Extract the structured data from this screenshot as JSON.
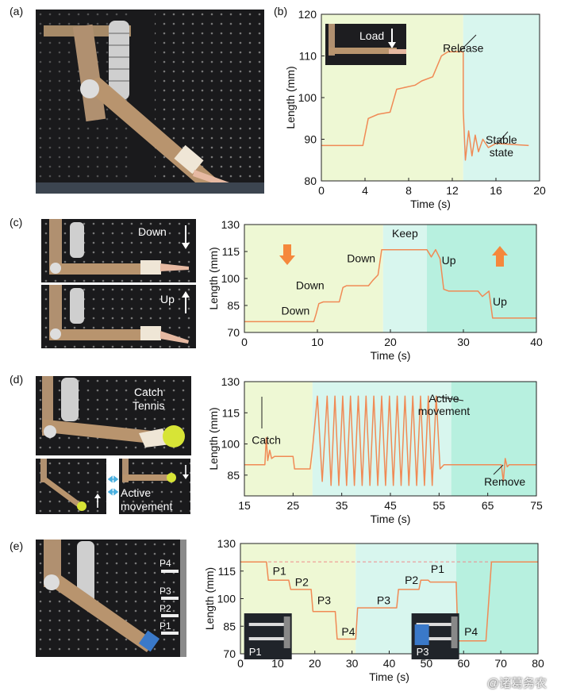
{
  "panels": {
    "a": {
      "label": "(a)"
    },
    "b": {
      "label": "(b)",
      "inset_text": "Load"
    },
    "c": {
      "label": "(c)",
      "photo_top_text": "Down",
      "photo_bottom_text": "Up"
    },
    "d": {
      "label": "(d)",
      "photo_text": "Catch\nTennis",
      "photo_small_text": "Active\nmovement"
    },
    "e": {
      "label": "(e)",
      "markers": [
        "P4",
        "P3",
        "P2",
        "P1"
      ]
    }
  },
  "watermark": "@诸葛务农",
  "colors": {
    "line": "#f08a55",
    "green_bg": "#eef8d4",
    "cyan_bg": "#d8f6ee",
    "teal_bg": "#b7f0df",
    "arrow": "#f5883c",
    "dashed": "#f08a8a"
  },
  "chart_data": [
    {
      "panel": "b",
      "type": "line",
      "xlabel": "Time (s)",
      "ylabel": "Length (mm)",
      "xlim": [
        0,
        20
      ],
      "ylim": [
        80,
        120
      ],
      "xticks": [
        0,
        4,
        8,
        12,
        16,
        20
      ],
      "yticks": [
        80,
        90,
        100,
        110,
        120
      ],
      "regions": [
        {
          "x": [
            0,
            13
          ],
          "color": "green"
        },
        {
          "x": [
            13,
            20
          ],
          "color": "cyan"
        }
      ],
      "annotations": [
        {
          "text": "Release",
          "x": 13,
          "y": 111
        },
        {
          "text": "Stable\nstate",
          "x": 16.5,
          "y": 89
        }
      ],
      "series": [
        {
          "x": [
            0,
            3.8,
            4.3,
            5.2,
            6.3,
            6.9,
            8.6,
            9.2,
            10.2,
            11.0,
            11.6,
            13.0,
            13.0,
            13.2,
            13.5,
            13.8,
            14.1,
            14.4,
            14.8,
            15.3,
            16.0,
            19
          ],
          "y": [
            88.5,
            88.5,
            95,
            96,
            96.5,
            102,
            103,
            104,
            105,
            110,
            111,
            111,
            97,
            85,
            92,
            86,
            91,
            87,
            90,
            88,
            89,
            88.5
          ]
        }
      ]
    },
    {
      "panel": "c",
      "type": "line",
      "xlabel": "Time (s)",
      "ylabel": "Length (mm)",
      "xlim": [
        0,
        40
      ],
      "ylim": [
        70,
        130
      ],
      "xticks": [
        0,
        10,
        20,
        30,
        40
      ],
      "yticks": [
        70,
        85,
        100,
        115,
        130
      ],
      "regions": [
        {
          "x": [
            0,
            19
          ],
          "color": "green"
        },
        {
          "x": [
            19,
            25
          ],
          "color": "cyan"
        },
        {
          "x": [
            25,
            40
          ],
          "color": "teal"
        }
      ],
      "annotations": [
        {
          "text": "Down",
          "x": 7,
          "y": 80
        },
        {
          "text": "Down",
          "x": 9,
          "y": 94
        },
        {
          "text": "Down",
          "x": 16,
          "y": 109
        },
        {
          "text": "Keep",
          "x": 22,
          "y": 123
        },
        {
          "text": "Up",
          "x": 28,
          "y": 108
        },
        {
          "text": "Up",
          "x": 35,
          "y": 85
        }
      ],
      "series": [
        {
          "x": [
            0,
            9.5,
            9.8,
            10.2,
            10.8,
            13.0,
            13.5,
            14.0,
            17.0,
            17.6,
            18.3,
            18.8,
            25.0,
            25.6,
            26.2,
            26.8,
            27.3,
            28.0,
            32.0,
            32.6,
            33.5,
            34.0,
            40
          ],
          "y": [
            76,
            76,
            80,
            86,
            87,
            87,
            95,
            96,
            96,
            99,
            102,
            116,
            116,
            112,
            116,
            111,
            94,
            93,
            93,
            90,
            93,
            78,
            78
          ]
        }
      ]
    },
    {
      "panel": "d",
      "type": "line",
      "xlabel": "Time (s)",
      "ylabel": "Length (mm)",
      "xlim": [
        15,
        75
      ],
      "ylim": [
        75,
        130
      ],
      "xticks": [
        15,
        25,
        35,
        45,
        55,
        65,
        75
      ],
      "yticks": [
        85,
        100,
        115,
        130
      ],
      "regions": [
        {
          "x": [
            15,
            29
          ],
          "color": "green"
        },
        {
          "x": [
            29,
            57.5
          ],
          "color": "cyan"
        },
        {
          "x": [
            57.5,
            75
          ],
          "color": "teal"
        }
      ],
      "annotations": [
        {
          "text": "Catch",
          "x": 19.5,
          "y": 100
        },
        {
          "text": "Active\nmovement",
          "x": 56,
          "y": 120
        },
        {
          "text": "Remove",
          "x": 68.5,
          "y": 80
        }
      ],
      "series": [
        {
          "x": [
            15,
            19.2,
            19.5,
            19.8,
            20.2,
            20.6,
            21.2,
            25.0,
            25.3,
            28.5,
            29.0,
            30.0,
            31.0,
            32.0,
            32.8,
            33.6,
            34.4,
            35.2,
            36.0,
            36.8,
            37.6,
            38.4,
            39.2,
            40.0,
            40.8,
            41.6,
            42.4,
            43.2,
            44.0,
            44.8,
            45.6,
            46.4,
            47.2,
            48.0,
            48.8,
            49.6,
            50.4,
            51.2,
            52.0,
            52.8,
            53.6,
            54.4,
            55.2,
            56.0,
            56.8,
            57.6,
            67.8,
            68.2,
            68.6,
            69.0,
            69.4,
            75
          ],
          "y": [
            90,
            90,
            103,
            92,
            97,
            93,
            94,
            94,
            88,
            88,
            98,
            123,
            82,
            123,
            80,
            123,
            80,
            123,
            80,
            123,
            80,
            123,
            80,
            123,
            80,
            123,
            80,
            123,
            80,
            123,
            80,
            123,
            80,
            123,
            80,
            123,
            80,
            123,
            80,
            123,
            80,
            123,
            88,
            90,
            90,
            90,
            90,
            82,
            93,
            89,
            90,
            90
          ]
        }
      ]
    },
    {
      "panel": "e",
      "type": "line",
      "xlabel": "Time (s)",
      "ylabel": "Length (mm)",
      "xlim": [
        0,
        80
      ],
      "ylim": [
        70,
        130
      ],
      "xticks": [
        0,
        10,
        20,
        30,
        40,
        50,
        60,
        70,
        80
      ],
      "yticks": [
        70,
        85,
        100,
        115,
        130
      ],
      "regions": [
        {
          "x": [
            0,
            31
          ],
          "color": "green"
        },
        {
          "x": [
            31,
            58
          ],
          "color": "cyan"
        },
        {
          "x": [
            58,
            80
          ],
          "color": "teal"
        }
      ],
      "reference_line": 120,
      "annotations": [
        {
          "text": "P1",
          "x": 10.5,
          "y": 113
        },
        {
          "text": "P2",
          "x": 16.5,
          "y": 107
        },
        {
          "text": "P3",
          "x": 22.5,
          "y": 97
        },
        {
          "text": "P4",
          "x": 29,
          "y": 80
        },
        {
          "text": "P3",
          "x": 38.5,
          "y": 97
        },
        {
          "text": "P2",
          "x": 46,
          "y": 108
        },
        {
          "text": "P1",
          "x": 53,
          "y": 114
        },
        {
          "text": "P4",
          "x": 62,
          "y": 80
        }
      ],
      "insets": [
        {
          "label": "P1",
          "x": 1,
          "y": 92
        },
        {
          "label": "P3",
          "x": 46,
          "y": 92
        }
      ],
      "series": [
        {
          "x": [
            0,
            7.0,
            7.5,
            13.0,
            13.5,
            19.0,
            19.5,
            25.5,
            26.0,
            31.0,
            31.5,
            42.0,
            42.5,
            48.0,
            48.5,
            50.5,
            51.0,
            58.0,
            58.5,
            66.0,
            67.5,
            80
          ],
          "y": [
            120,
            120,
            110,
            110,
            105,
            105,
            93,
            93,
            78,
            78,
            95,
            95,
            105,
            105,
            110,
            110,
            109,
            109,
            77,
            77,
            120,
            120
          ]
        }
      ]
    }
  ]
}
